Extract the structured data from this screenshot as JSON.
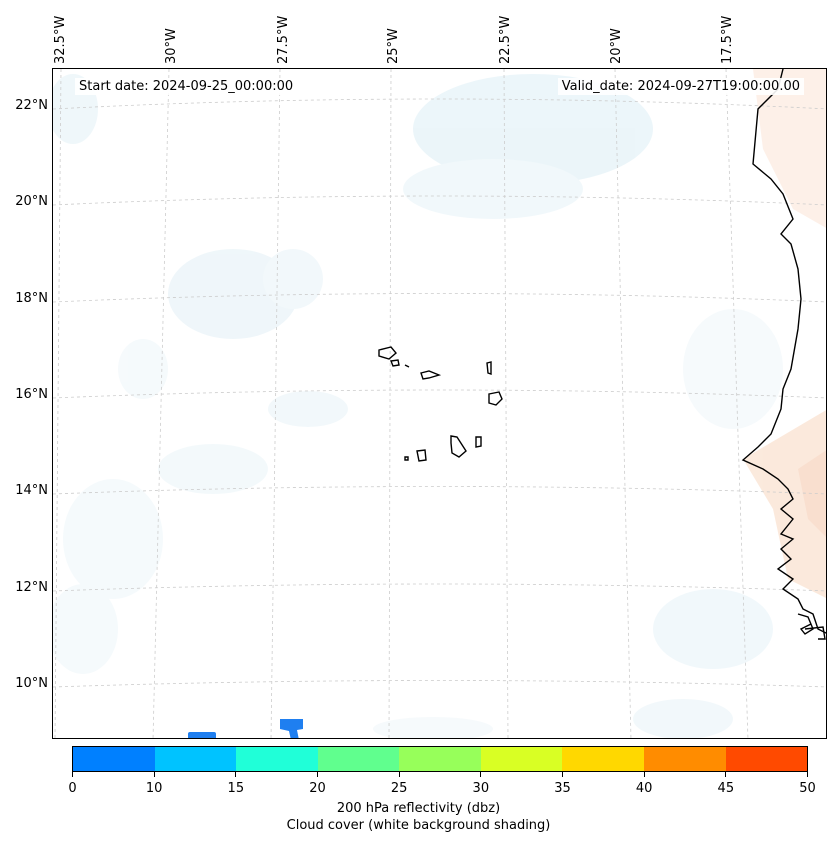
{
  "map": {
    "start_date": "Start date: 2024-09-25_00:00:00",
    "valid_date": "Valid_date: 2024-09-27T19:00:00.00",
    "lon_labels": [
      "32.5°W",
      "30°W",
      "27.5°W",
      "25°W",
      "22.5°W",
      "20°W",
      "17.5°W"
    ],
    "lat_labels": [
      "22°N",
      "20°N",
      "18°N",
      "16°N",
      "14°N",
      "12°N",
      "10°N"
    ]
  },
  "colorbar": {
    "ticks": [
      "0",
      "10",
      "15",
      "20",
      "25",
      "30",
      "35",
      "40",
      "45",
      "50"
    ],
    "colors": [
      "#0080ff",
      "#00c3ff",
      "#20ffd8",
      "#60ff8e",
      "#97ff5a",
      "#d9ff24",
      "#ffd800",
      "#ff8c00",
      "#ff4a00"
    ],
    "title_line1": "200 hPa reflectivity (dbz)",
    "title_line2": "Cloud cover (white background shading)"
  }
}
